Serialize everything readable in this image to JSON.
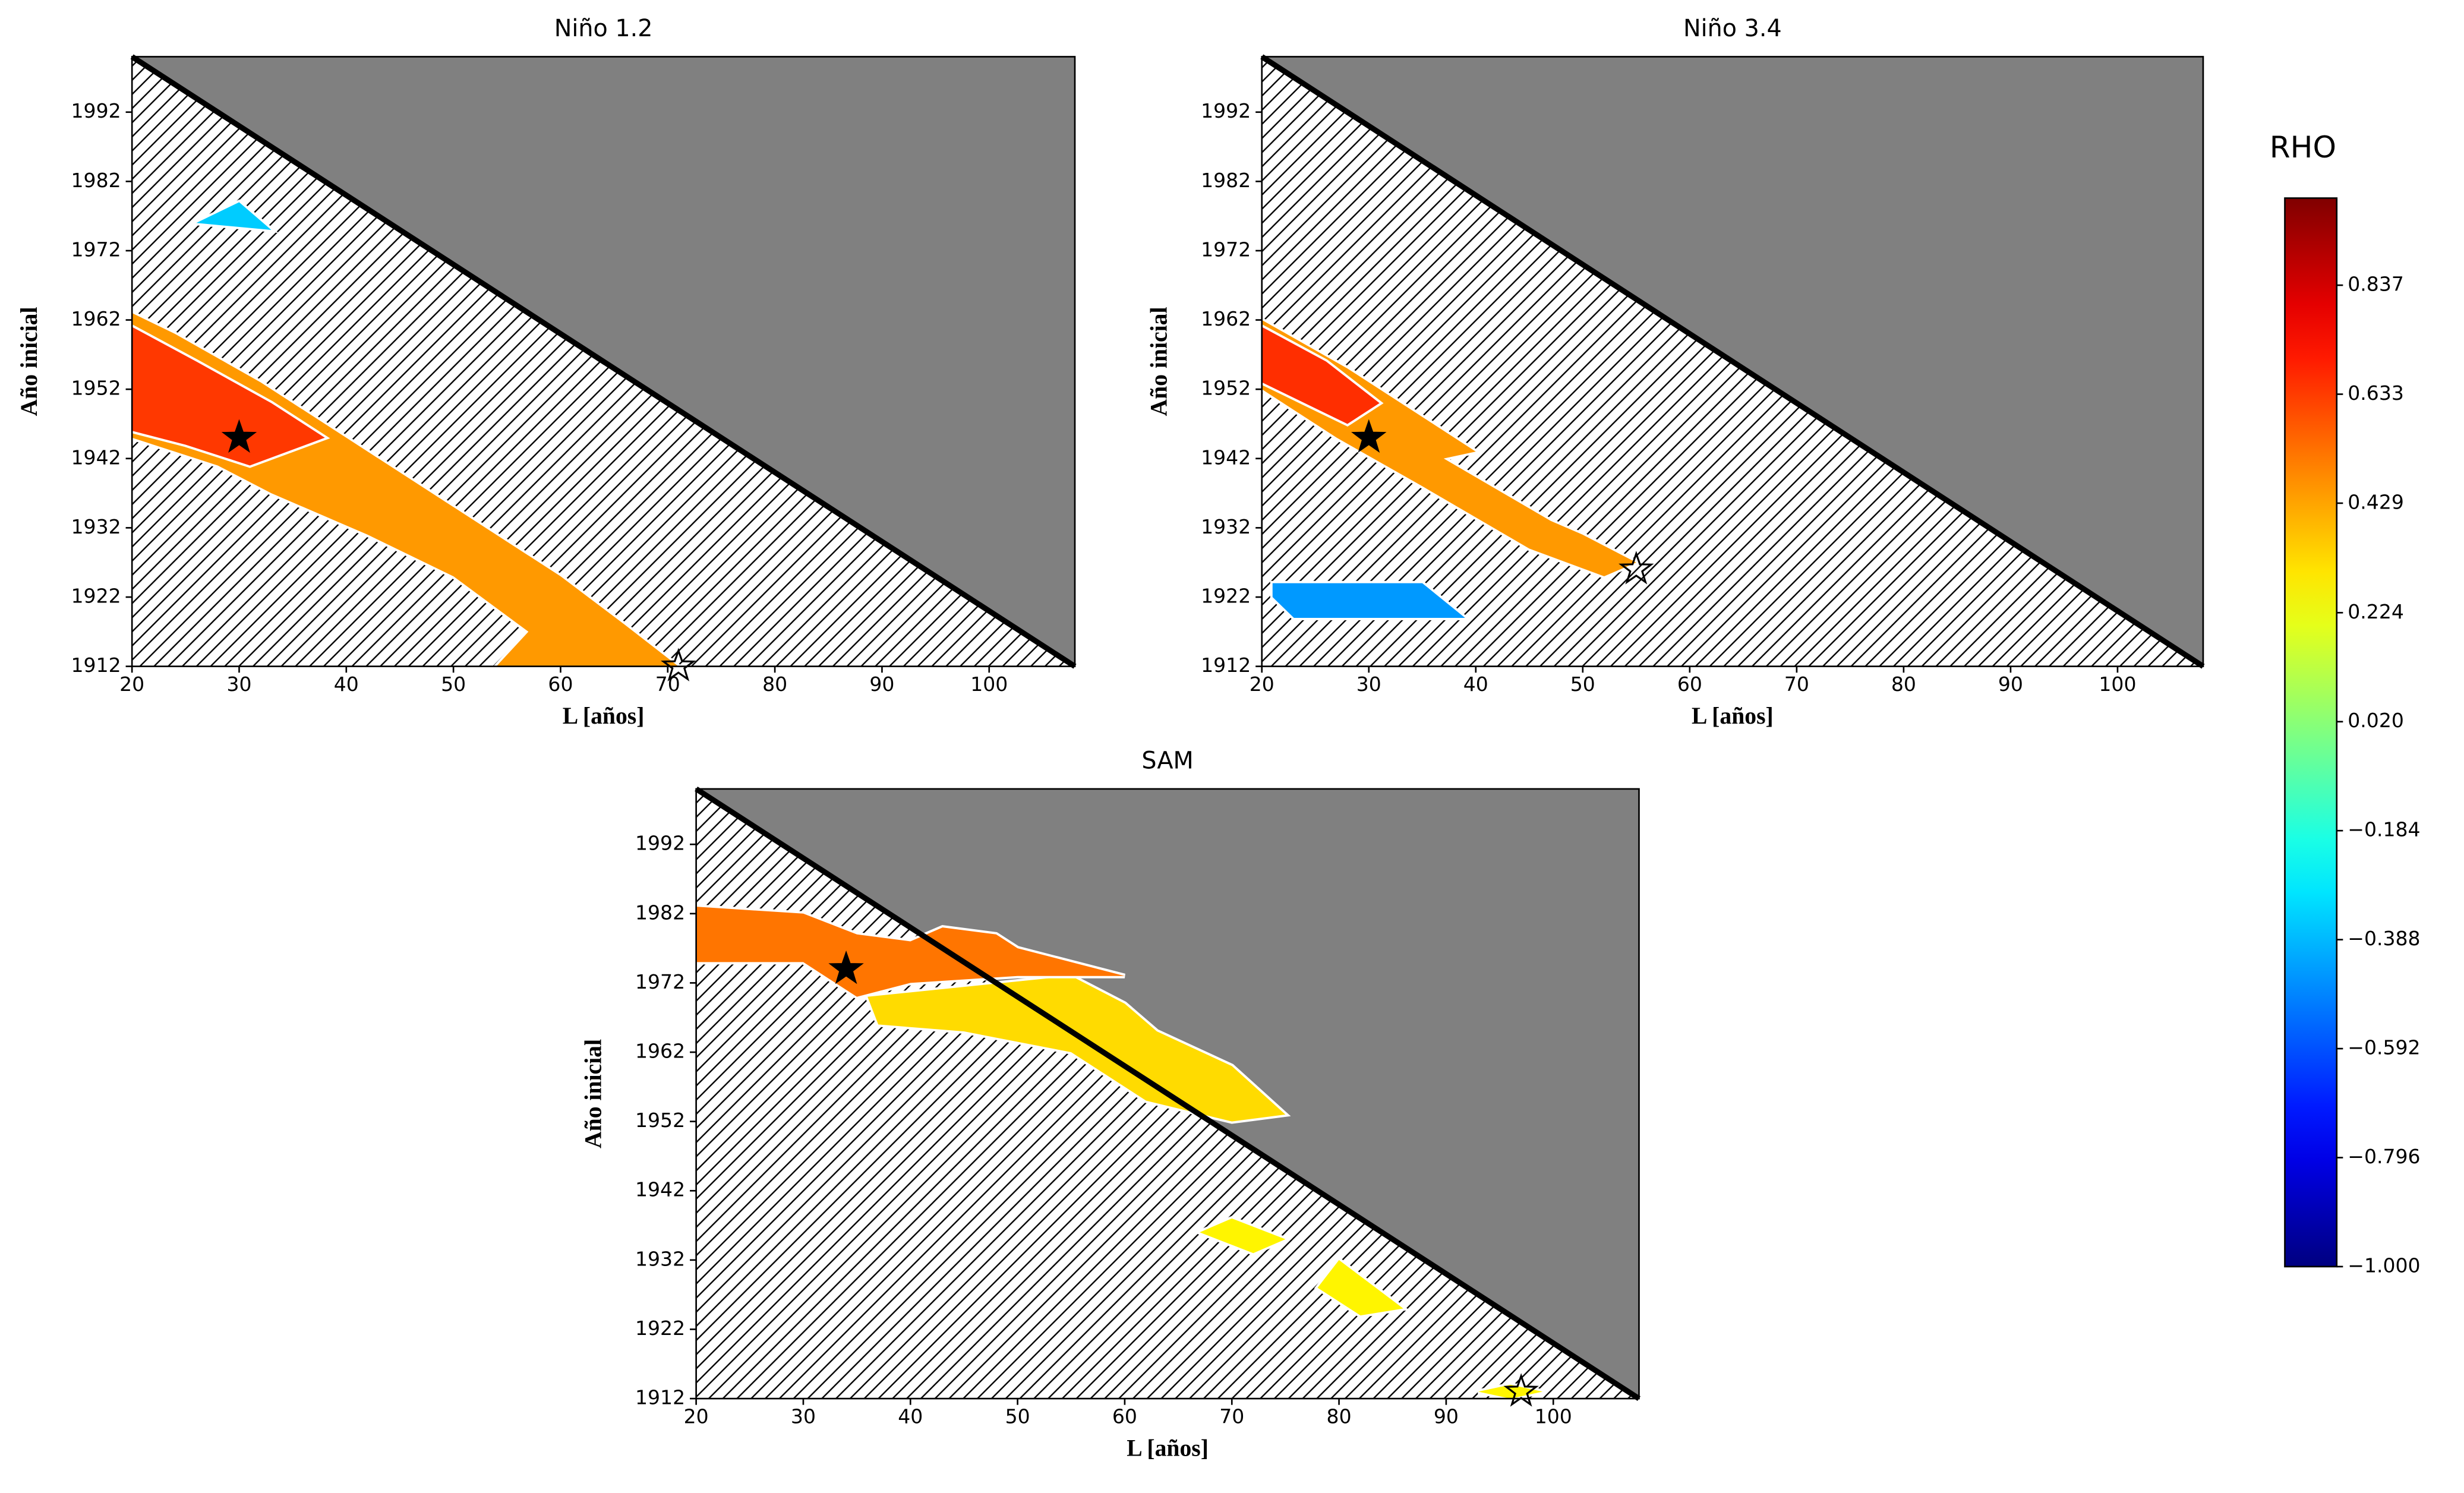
{
  "chart_data": [
    {
      "type": "contour",
      "title": "Niño 1.2",
      "xlabel": "L [años]",
      "ylabel": "Año inicial",
      "xlim": [
        20,
        108
      ],
      "ylim": [
        1912,
        2000
      ],
      "xticks": [
        20,
        30,
        40,
        50,
        60,
        70,
        80,
        90,
        100
      ],
      "yticks": [
        1912,
        1922,
        1932,
        1942,
        1952,
        1962,
        1972,
        1982,
        1992
      ],
      "regions": [
        {
          "rho": 0.45,
          "points": [
            [
              20,
              1963
            ],
            [
              24,
              1960
            ],
            [
              32,
              1953
            ],
            [
              40,
              1945
            ],
            [
              50,
              1935
            ],
            [
              60,
              1925
            ],
            [
              66,
              1918
            ],
            [
              71,
              1912
            ],
            [
              54,
              1912
            ],
            [
              57,
              1917
            ],
            [
              50,
              1925
            ],
            [
              42,
              1931
            ],
            [
              33,
              1937
            ],
            [
              28,
              1941
            ],
            [
              20,
              1945
            ]
          ]
        },
        {
          "rho": 0.64,
          "points": [
            [
              20,
              1961
            ],
            [
              26,
              1956
            ],
            [
              33,
              1950
            ],
            [
              38,
              1945
            ],
            [
              31,
              1941
            ],
            [
              25,
              1944
            ],
            [
              20,
              1946
            ]
          ]
        },
        {
          "rho": -0.35,
          "points": [
            [
              26,
              1976
            ],
            [
              30,
              1979
            ],
            [
              33,
              1975
            ]
          ]
        }
      ],
      "markers": [
        {
          "x": 30,
          "y": 1945,
          "style": "filled"
        },
        {
          "x": 71,
          "y": 1912,
          "style": "open"
        }
      ]
    },
    {
      "type": "contour",
      "title": "Niño 3.4",
      "xlabel": "L [años]",
      "ylabel": "Año inicial",
      "xlim": [
        20,
        108
      ],
      "ylim": [
        1912,
        2000
      ],
      "xticks": [
        20,
        30,
        40,
        50,
        60,
        70,
        80,
        90,
        100
      ],
      "yticks": [
        1912,
        1922,
        1932,
        1942,
        1952,
        1962,
        1972,
        1982,
        1992
      ],
      "regions": [
        {
          "rho": 0.45,
          "points": [
            [
              20,
              1962
            ],
            [
              28,
              1955
            ],
            [
              40,
              1943
            ],
            [
              37,
              1942
            ],
            [
              47,
              1933
            ],
            [
              50,
              1931
            ],
            [
              55,
              1927
            ],
            [
              52,
              1925
            ],
            [
              45,
              1929
            ],
            [
              35,
              1938
            ],
            [
              27,
              1945
            ],
            [
              20,
              1952
            ]
          ]
        },
        {
          "rho": 0.66,
          "points": [
            [
              20,
              1961
            ],
            [
              26,
              1956
            ],
            [
              31,
              1950
            ],
            [
              28,
              1947
            ],
            [
              24,
              1950
            ],
            [
              20,
              1953
            ]
          ]
        },
        {
          "rho": -0.45,
          "points": [
            [
              21,
              1924
            ],
            [
              35,
              1924
            ],
            [
              39,
              1919
            ],
            [
              23,
              1919
            ],
            [
              21,
              1922
            ]
          ]
        }
      ],
      "markers": [
        {
          "x": 30,
          "y": 1945,
          "style": "filled"
        },
        {
          "x": 55,
          "y": 1926,
          "style": "open"
        }
      ]
    },
    {
      "type": "contour",
      "title": "SAM",
      "xlabel": "L [años]",
      "ylabel": "Año inicial",
      "xlim": [
        20,
        108
      ],
      "ylim": [
        1912,
        2000
      ],
      "xticks": [
        20,
        30,
        40,
        50,
        60,
        70,
        80,
        90,
        100
      ],
      "yticks": [
        1912,
        1922,
        1932,
        1942,
        1952,
        1962,
        1972,
        1982,
        1992
      ],
      "regions": [
        {
          "rho": 0.32,
          "points": [
            [
              36,
              1970
            ],
            [
              55,
              1973
            ],
            [
              60,
              1969
            ],
            [
              63,
              1965
            ],
            [
              70,
              1960
            ],
            [
              75,
              1953
            ],
            [
              70,
              1952
            ],
            [
              62,
              1955
            ],
            [
              55,
              1962
            ],
            [
              45,
              1965
            ],
            [
              37,
              1966
            ]
          ]
        },
        {
          "rho": 0.52,
          "points": [
            [
              20,
              1983
            ],
            [
              30,
              1982
            ],
            [
              35,
              1979
            ],
            [
              40,
              1978
            ],
            [
              43,
              1980
            ],
            [
              48,
              1979
            ],
            [
              50,
              1977
            ],
            [
              60,
              1973
            ],
            [
              50,
              1973
            ],
            [
              40,
              1972
            ],
            [
              35,
              1970
            ],
            [
              30,
              1975
            ],
            [
              20,
              1975
            ]
          ]
        },
        {
          "rho": 0.27,
          "points": [
            [
              67,
              1936
            ],
            [
              70,
              1938
            ],
            [
              75,
              1935
            ],
            [
              72,
              1933
            ]
          ]
        },
        {
          "rho": 0.27,
          "points": [
            [
              78,
              1928
            ],
            [
              80,
              1932
            ],
            [
              86,
              1925
            ],
            [
              82,
              1924
            ]
          ]
        },
        {
          "rho": 0.27,
          "points": [
            [
              93,
              1913
            ],
            [
              96,
              1914
            ],
            [
              99,
              1913
            ],
            [
              96,
              1912
            ]
          ]
        }
      ],
      "markers": [
        {
          "x": 34,
          "y": 1974,
          "style": "filled"
        },
        {
          "x": 97,
          "y": 1913,
          "style": "open"
        }
      ]
    },
    {
      "type": "colorbar",
      "title": "RHO",
      "lim": [
        -1,
        1
      ],
      "ticks": [
        {
          "value": -1,
          "label": "−1.000"
        },
        {
          "value": -0.796,
          "label": "−0.796"
        },
        {
          "value": -0.592,
          "label": "−0.592"
        },
        {
          "value": -0.388,
          "label": "−0.388"
        },
        {
          "value": -0.184,
          "label": "−0.184"
        },
        {
          "value": 0.02,
          "label": "0.020"
        },
        0.224,
        0.429,
        0.633,
        0.837
      ]
    }
  ]
}
